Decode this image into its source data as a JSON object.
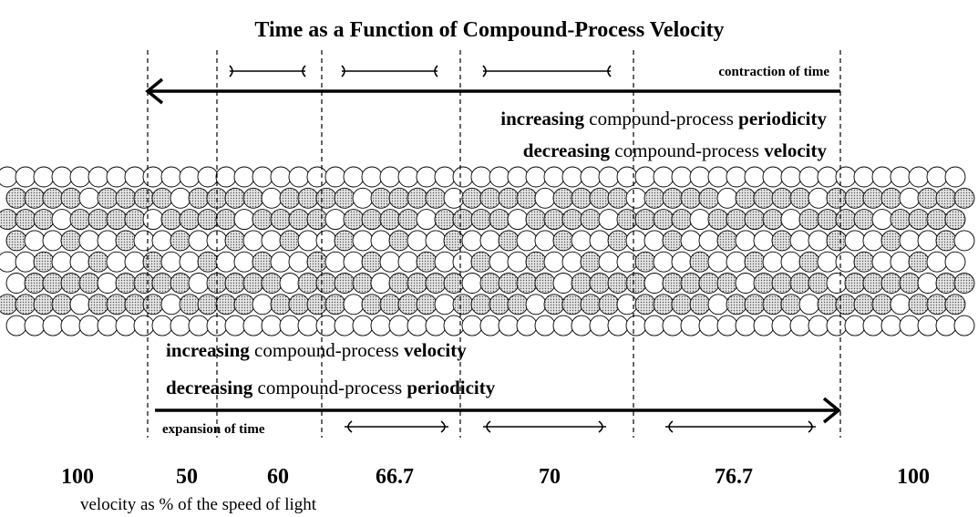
{
  "title": "Time as a Function of Compound-Process Velocity",
  "top": {
    "label": "contraction of time",
    "lines": [
      [
        "increasing",
        "compound-process",
        "periodicity"
      ],
      [
        "decreasing",
        "compound-process",
        "velocity"
      ]
    ]
  },
  "bottom": {
    "lines": [
      [
        "increasing",
        "compound-process",
        "velocity"
      ],
      [
        "decreasing",
        "compound-process",
        "periodicity"
      ]
    ],
    "label": "expansion of time"
  },
  "velocities": [
    "100",
    "50",
    "60",
    "66.7",
    "70",
    "76.7",
    "100"
  ],
  "axis_label": "velocity as % of the speed of light"
}
